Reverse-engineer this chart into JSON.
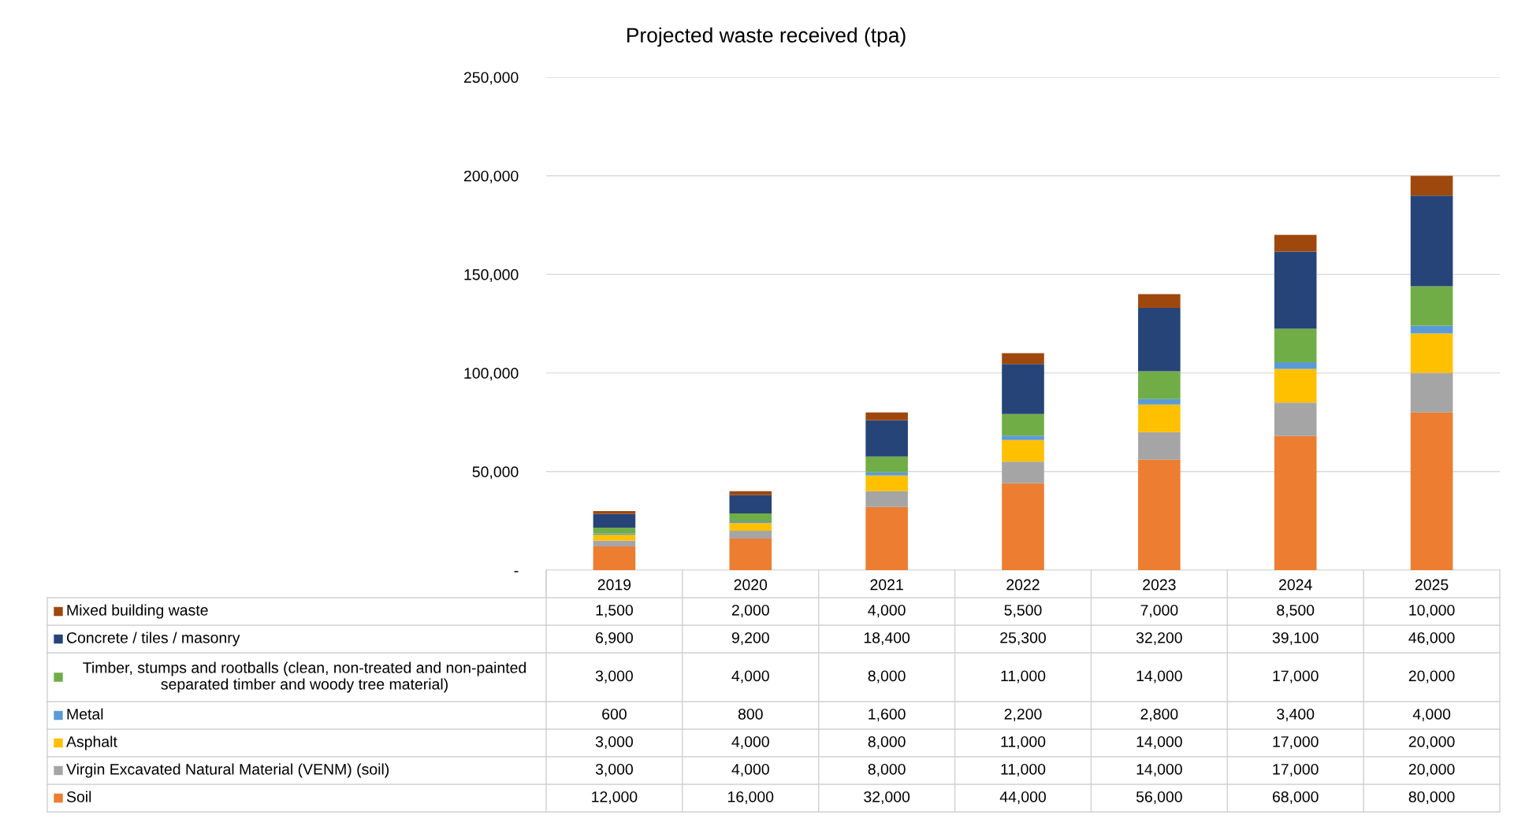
{
  "chart_data": {
    "type": "bar",
    "title": "Projected waste received (tpa)",
    "stacked": true,
    "categories": [
      "2019",
      "2020",
      "2021",
      "2022",
      "2023",
      "2024",
      "2025"
    ],
    "series": [
      {
        "name": "Soil",
        "color": "#ed7d31",
        "values": [
          12000,
          16000,
          32000,
          44000,
          56000,
          68000,
          80000
        ],
        "value_labels": [
          "12,000",
          "16,000",
          "32,000",
          "44,000",
          "56,000",
          "68,000",
          "80,000"
        ]
      },
      {
        "name": "Virgin Excavated Natural Material (VENM) (soil)",
        "color": "#a5a5a5",
        "values": [
          3000,
          4000,
          8000,
          11000,
          14000,
          17000,
          20000
        ],
        "value_labels": [
          "3,000",
          "4,000",
          "8,000",
          "11,000",
          "14,000",
          "17,000",
          "20,000"
        ]
      },
      {
        "name": "Asphalt",
        "color": "#ffc000",
        "values": [
          3000,
          4000,
          8000,
          11000,
          14000,
          17000,
          20000
        ],
        "value_labels": [
          "3,000",
          "4,000",
          "8,000",
          "11,000",
          "14,000",
          "17,000",
          "20,000"
        ]
      },
      {
        "name": "Metal",
        "color": "#5b9bd5",
        "values": [
          600,
          800,
          1600,
          2200,
          2800,
          3400,
          4000
        ],
        "value_labels": [
          "600",
          "800",
          "1,600",
          "2,200",
          "2,800",
          "3,400",
          "4,000"
        ]
      },
      {
        "name": "Timber, stumps and rootballs (clean, non-treated and non-painted\nseparated timber and woody tree material)",
        "color": "#70ad47",
        "values": [
          3000,
          4000,
          8000,
          11000,
          14000,
          17000,
          20000
        ],
        "value_labels": [
          "3,000",
          "4,000",
          "8,000",
          "11,000",
          "14,000",
          "17,000",
          "20,000"
        ]
      },
      {
        "name": "Concrete / tiles / masonry",
        "color": "#264478",
        "values": [
          6900,
          9200,
          18400,
          25300,
          32200,
          39100,
          46000
        ],
        "value_labels": [
          "6,900",
          "9,200",
          "18,400",
          "25,300",
          "32,200",
          "39,100",
          "46,000"
        ]
      },
      {
        "name": "Mixed building waste",
        "color": "#9e480e",
        "values": [
          1500,
          2000,
          4000,
          5500,
          7000,
          8500,
          10000
        ],
        "value_labels": [
          "1,500",
          "2,000",
          "4,000",
          "5,500",
          "7,000",
          "8,500",
          "10,000"
        ]
      }
    ],
    "ylim": [
      0,
      250000
    ],
    "yticks": [
      {
        "value": 0,
        "label": "-"
      },
      {
        "value": 50000,
        "label": "50,000"
      },
      {
        "value": 100000,
        "label": "100,000"
      },
      {
        "value": 150000,
        "label": "150,000"
      },
      {
        "value": 200000,
        "label": "200,000"
      },
      {
        "value": 250000,
        "label": "250,000"
      }
    ],
    "grid": "y",
    "legend": "bottom left"
  }
}
